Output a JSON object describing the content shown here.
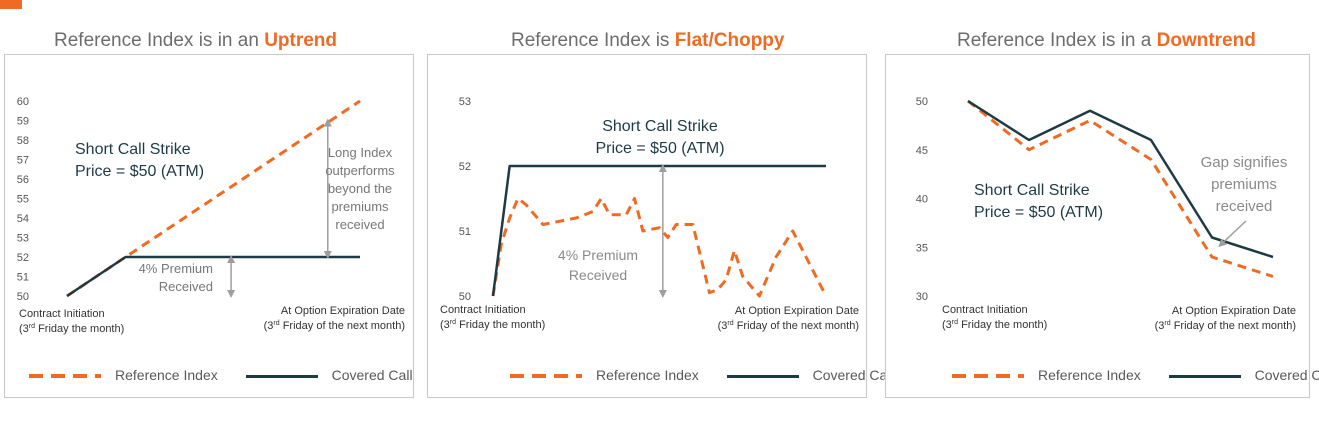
{
  "panels": [
    {
      "title_prefix": "Reference Index is in an ",
      "title_highlight": "Uptrend",
      "strike_label": [
        "Short Call Strike",
        "Price = $50 (ATM)"
      ],
      "premium_label": [
        "4% Premium",
        "Received"
      ],
      "note_label": [
        "Long Index",
        "outperforms",
        "beyond the",
        "premiums",
        "received"
      ],
      "x_start_label": [
        "Contract Initiation",
        "(3rd Friday the month)"
      ],
      "x_end_label": [
        "At Option Expiration Date",
        "(3rd Friday of the next month)"
      ]
    },
    {
      "title_prefix": "Reference Index is ",
      "title_highlight": "Flat/Choppy",
      "strike_label": [
        "Short Call Strike",
        "Price = $50 (ATM)"
      ],
      "premium_label": [
        "4% Premium",
        "Received"
      ],
      "x_start_label": [
        "Contract Initiation",
        "(3rd Friday the month)"
      ],
      "x_end_label": [
        "At Option Expiration Date",
        "(3rd Friday of the next month)"
      ]
    },
    {
      "title_prefix": "Reference Index is in a ",
      "title_highlight": "Downtrend",
      "strike_label": [
        "Short Call Strike",
        "Price = $50 (ATM)"
      ],
      "note_label": [
        "Gap signifies",
        "premiums",
        "received"
      ],
      "x_start_label": [
        "Contract Initiation",
        "(3rd Friday the month)"
      ],
      "x_end_label": [
        "At Option Expiration Date",
        "(3rd Friday of the next month)"
      ]
    }
  ],
  "legend": {
    "reference": "Reference Index",
    "covered": "Covered Call"
  },
  "colors": {
    "reference": "#ef6b24",
    "covered": "#1e3a45",
    "annotation": "#9e9e9e",
    "accent": "#ef6b24"
  },
  "chart_data": [
    {
      "type": "line",
      "title": "Reference Index is in an Uptrend",
      "ylim": [
        50,
        60
      ],
      "yticks": [
        50,
        51,
        52,
        53,
        54,
        55,
        56,
        57,
        58,
        59,
        60
      ],
      "xlim": [
        0,
        10
      ],
      "series": [
        {
          "name": "Reference Index",
          "x": [
            0,
            10
          ],
          "y": [
            50,
            60
          ]
        },
        {
          "name": "Covered Call",
          "x": [
            0,
            2,
            10
          ],
          "y": [
            50,
            52,
            52
          ]
        }
      ]
    },
    {
      "type": "line",
      "title": "Reference Index is Flat/Choppy",
      "ylim": [
        50,
        53
      ],
      "yticks": [
        50,
        51,
        52,
        53
      ],
      "xlim": [
        0,
        20
      ],
      "series": [
        {
          "name": "Reference Index",
          "x": [
            0,
            0.5,
            1,
            1.5,
            2,
            3,
            4,
            5,
            6,
            6.5,
            7,
            8,
            8.5,
            9,
            10,
            10.5,
            11,
            12,
            13,
            13.5,
            14,
            14.5,
            15,
            16,
            17,
            18,
            19,
            20
          ],
          "y": [
            50,
            50.8,
            51.2,
            51.5,
            51.4,
            51.1,
            51.15,
            51.2,
            51.3,
            51.5,
            51.25,
            51.25,
            51.5,
            51.0,
            51.05,
            50.9,
            51.1,
            51.1,
            50.05,
            50.1,
            50.25,
            50.7,
            50.3,
            50.0,
            50.6,
            51.0,
            50.5,
            50.0
          ]
        },
        {
          "name": "Covered Call",
          "x": [
            0,
            1,
            20
          ],
          "y": [
            50,
            52,
            52
          ]
        }
      ]
    },
    {
      "type": "line",
      "title": "Reference Index is in a Downtrend",
      "ylim": [
        30,
        50
      ],
      "yticks": [
        30,
        35,
        40,
        45,
        50
      ],
      "xlim": [
        0,
        10
      ],
      "series": [
        {
          "name": "Reference Index",
          "x": [
            0,
            2,
            4,
            6,
            8,
            10
          ],
          "y": [
            50,
            45,
            48,
            44,
            34,
            32
          ]
        },
        {
          "name": "Covered Call",
          "x": [
            0,
            2,
            4,
            6,
            8,
            10
          ],
          "y": [
            50,
            46,
            49,
            46,
            36,
            34
          ]
        }
      ]
    }
  ]
}
